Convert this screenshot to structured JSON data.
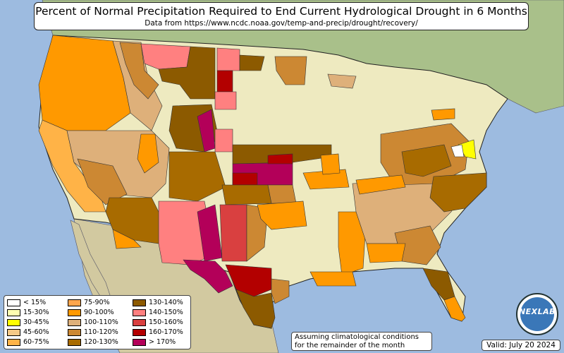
{
  "title": "Percent of Normal Precipitation Required to End Current Hydrological Drought in 6 Months",
  "subtitle": "Data from https://www.ncdc.noaa.gov/temp-and-precip/drought/recovery/",
  "legend": [
    {
      "label": "< 15%",
      "color": "#ffffff"
    },
    {
      "label": "15-30%",
      "color": "#ffffb0"
    },
    {
      "label": "30-45%",
      "color": "#ffff00"
    },
    {
      "label": "45-60%",
      "color": "#f5c987"
    },
    {
      "label": "60-75%",
      "color": "#ffb347"
    },
    {
      "label": "75-90%",
      "color": "#ffa64d"
    },
    {
      "label": "90-100%",
      "color": "#ff9900"
    },
    {
      "label": "100-110%",
      "color": "#deb07a"
    },
    {
      "label": "110-120%",
      "color": "#cc8833"
    },
    {
      "label": "120-130%",
      "color": "#a86b00"
    },
    {
      "label": "130-140%",
      "color": "#8c5a00"
    },
    {
      "label": "140-150%",
      "color": "#ff8080"
    },
    {
      "label": "150-160%",
      "color": "#d94040"
    },
    {
      "label": "160-170%",
      "color": "#b30000"
    },
    {
      "label": "> 170%",
      "color": "#b30059"
    }
  ],
  "note_line1": "Assuming climatological conditions",
  "note_line2": "for the remainder of the month",
  "valid": "Valid: July 20 2024",
  "logo_text": "NEXLAB",
  "colors": {
    "ocean": "#9dbbe0",
    "no_drought": "#eeeac0",
    "canada": "#a9c08a",
    "mexico": "#d2c9a0"
  }
}
